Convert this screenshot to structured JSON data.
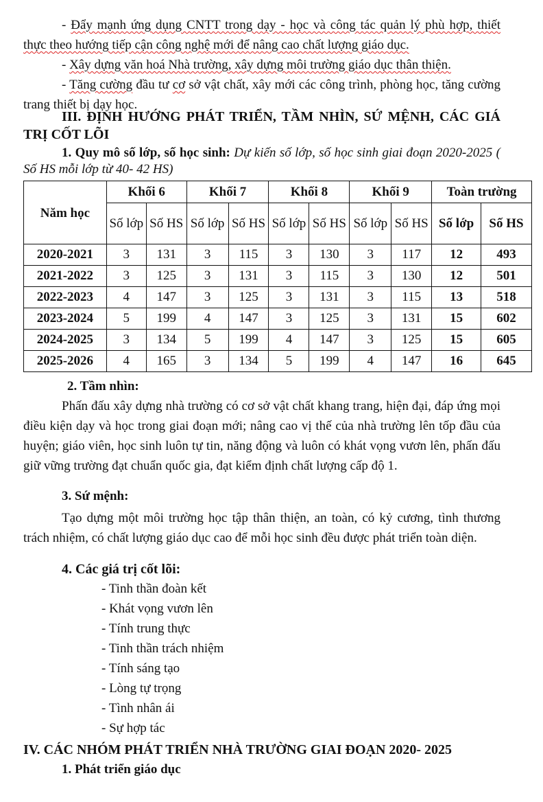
{
  "paragraphs": {
    "p1_a": "- ",
    "p1_b": "Đẩy mạnh ứng dụng CNTT trong dạy - học và công tác quản lý phù hợp, thiết thực theo hướng tiếp cận công nghệ mới để nâng cao chất lượng giáo dục.",
    "p2_a": "- ",
    "p2_b": "Xây dựng văn hoá Nhà trường, xây dựng môi trường giáo dục thân thiện.",
    "p3_a": "- ",
    "p3_b": "Tăng cường",
    "p3_c": " đầu tư ",
    "p3_d": "cơ",
    "p3_e": " sở vật chất, xây mới các công trình, phòng học, tăng cường trang thiết bị dạy học."
  },
  "section3": {
    "title": "III. ĐỊNH HƯỚNG PHÁT TRIỂN, TẦM NHÌN, SỨ MỆNH, CÁC GIÁ TRỊ CỐT LÕI",
    "item1_label": "1. Quy mô số lớp, số học sinh:",
    "item1_text": " Dự kiến số lớp, số học sinh giai đoạn 2020-2025 ( Số HS mỗi lớp từ 40- 42 HS)"
  },
  "table": {
    "year_header": "Năm học",
    "groups": [
      "Khối 6",
      "Khối 7",
      "Khối 8",
      "Khối 9",
      "Toàn trường"
    ],
    "sub_class": "Số lớp",
    "sub_hs": "Số HS",
    "rows": [
      [
        "2020-2021",
        "3",
        "131",
        "3",
        "115",
        "3",
        "130",
        "3",
        "117",
        "12",
        "493"
      ],
      [
        "2021-2022",
        "3",
        "125",
        "3",
        "131",
        "3",
        "115",
        "3",
        "130",
        "12",
        "501"
      ],
      [
        "2022-2023",
        "4",
        "147",
        "3",
        "125",
        "3",
        "131",
        "3",
        "115",
        "13",
        "518"
      ],
      [
        "2023-2024",
        "5",
        "199",
        "4",
        "147",
        "3",
        "125",
        "3",
        "131",
        "15",
        "602"
      ],
      [
        "2024-2025",
        "3",
        "134",
        "5",
        "199",
        "4",
        "147",
        "3",
        "125",
        "15",
        "605"
      ],
      [
        "2025-2026",
        "4",
        "165",
        "3",
        "134",
        "5",
        "199",
        "4",
        "147",
        "16",
        "645"
      ]
    ]
  },
  "vision": {
    "title": "2. Tầm nhìn:",
    "text": "Phấn đấu xây dựng nhà trường có cơ sở vật chất khang trang, hiện đại, đáp ứng mọi điều kiện dạy và học trong giai đoạn mới; nâng cao vị thế của nhà trường lên tốp đầu của huyện; giáo viên, học sinh luôn tự tin, năng động và luôn có khát vọng vươn lên, phấn đấu giữ vững trường đạt chuẩn quốc gia, đạt kiểm định chất lượng cấp độ 1."
  },
  "mission": {
    "title": "3. Sứ mệnh:",
    "text": "Tạo dựng một môi trường học tập thân thiện, an toàn, có kỷ cương, tình thương trách nhiệm, có chất lượng giáo dục cao để mỗi học sinh đều được phát triển toàn diện."
  },
  "values": {
    "title": "4. Các giá trị cốt lõi:",
    "items": [
      "- Tinh thần đoàn kết",
      "- Khát vọng vươn lên",
      "- Tính trung thực",
      "- Tinh thần trách nhiệm",
      "- Tính sáng tạo",
      "- Lòng tự trọng",
      "- Tình nhân ái",
      "- Sự hợp tác"
    ]
  },
  "section4": {
    "title": "IV. CÁC NHÓM PHÁT TRIỂN NHÀ TRƯỜNG GIAI ĐOẠN 2020- 2025",
    "item1": "1.  Phát triển giáo dục"
  }
}
